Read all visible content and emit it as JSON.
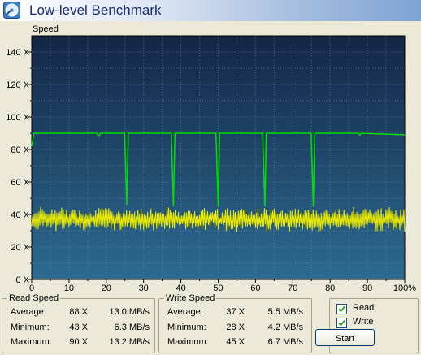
{
  "window": {
    "title": "Low-level Benchmark"
  },
  "chart_data": {
    "type": "line",
    "ylabel": "Speed",
    "x_ticks": [
      "0",
      "10",
      "20",
      "30",
      "40",
      "50",
      "60",
      "70",
      "80",
      "90",
      "100%"
    ],
    "y_ticks": [
      "0 X",
      "20 X",
      "40 X",
      "60 X",
      "80 X",
      "100 X",
      "120 X",
      "140 X"
    ],
    "xlim": [
      0,
      100
    ],
    "ylim": [
      0,
      150
    ],
    "grid": true,
    "series": [
      {
        "color": "#00e000",
        "baseline": 90,
        "start_x": 0,
        "start_y": 82,
        "dips": [
          {
            "x": 18,
            "y": 88
          },
          {
            "x": 25.5,
            "y": 46
          },
          {
            "x": 38,
            "y": 45
          },
          {
            "x": 50,
            "y": 45
          },
          {
            "x": 62.5,
            "y": 45
          },
          {
            "x": 75.5,
            "y": 45
          },
          {
            "x": 88,
            "y": 89
          }
        ]
      },
      {
        "color": "#e8e800",
        "mean": 37,
        "min": 28,
        "max": 45
      }
    ]
  },
  "read_speed": {
    "title": "Read Speed",
    "rows": [
      {
        "label": "Average:",
        "pct": "88 X",
        "mbs": "13.0 MB/s"
      },
      {
        "label": "Minimum:",
        "pct": "43 X",
        "mbs": "6.3 MB/s"
      },
      {
        "label": "Maximum:",
        "pct": "90 X",
        "mbs": "13.2 MB/s"
      }
    ]
  },
  "write_speed": {
    "title": "Write Speed",
    "rows": [
      {
        "label": "Average:",
        "pct": "37 X",
        "mbs": "5.5 MB/s"
      },
      {
        "label": "Minimum:",
        "pct": "28 X",
        "mbs": "4.2 MB/s"
      },
      {
        "label": "Maximum:",
        "pct": "45 X",
        "mbs": "6.7 MB/s"
      }
    ]
  },
  "options": {
    "read_label": "Read",
    "read_checked": true,
    "write_label": "Write",
    "write_checked": true,
    "start_label": "Start"
  }
}
